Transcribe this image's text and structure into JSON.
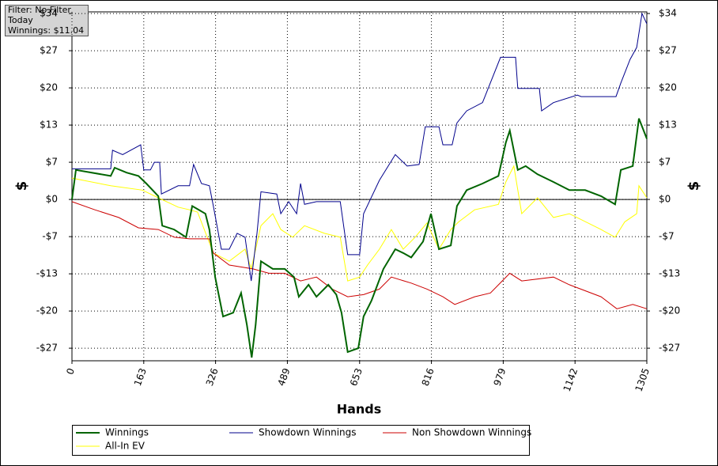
{
  "chart_data": {
    "type": "line",
    "annotations": [
      "Filter: No Filter",
      "Today",
      "Winnings: $11.04"
    ],
    "xlabel": "Hands",
    "ylabel": "$",
    "xlim": [
      0,
      1305
    ],
    "xticks": [
      0,
      163,
      326,
      489,
      653,
      816,
      979,
      1142,
      1305
    ],
    "ylim": [
      -29.5,
      34.3
    ],
    "yticks": [
      {
        "value": 34,
        "label": "$34"
      },
      {
        "value": 27.2,
        "label": "$27"
      },
      {
        "value": 20.4,
        "label": "$20"
      },
      {
        "value": 13.6,
        "label": "$13"
      },
      {
        "value": 6.8,
        "label": "$7"
      },
      {
        "value": 0,
        "label": "$0"
      },
      {
        "value": -6.8,
        "label": "-$7"
      },
      {
        "value": -13.6,
        "label": "-$13"
      },
      {
        "value": -20.4,
        "label": "-$20"
      },
      {
        "value": -27.2,
        "label": "-$27"
      }
    ],
    "grid": true,
    "series": [
      {
        "name": "Winnings",
        "color": "#006400",
        "x": [
          0,
          9,
          88,
          97,
          124,
          151,
          169,
          196,
          205,
          232,
          259,
          273,
          303,
          312,
          325,
          343,
          366,
          384,
          397,
          408,
          417,
          429,
          456,
          483,
          504,
          515,
          537,
          555,
          582,
          600,
          612,
          626,
          650,
          662,
          680,
          707,
          734,
          752,
          770,
          797,
          815,
          833,
          860,
          874,
          896,
          932,
          968,
          985,
          994,
          1012,
          1030,
          1057,
          1093,
          1129,
          1165,
          1201,
          1233,
          1246,
          1273,
          1287,
          1305
        ],
        "values": [
          0,
          5.4,
          4.3,
          5.8,
          4.9,
          4.3,
          2.9,
          0.6,
          -4.8,
          -5.5,
          -6.9,
          -1.2,
          -2.6,
          -5.5,
          -14.2,
          -21.4,
          -20.7,
          -17.1,
          -22.9,
          -28.9,
          -22.9,
          -11.3,
          -12.7,
          -12.7,
          -14.2,
          -17.8,
          -15.6,
          -17.8,
          -15.6,
          -17.4,
          -20.7,
          -27.9,
          -27.2,
          -21.4,
          -18.5,
          -12.7,
          -9.1,
          -9.8,
          -10.6,
          -7.7,
          -2.6,
          -9.1,
          -8.4,
          -1.2,
          1.7,
          2.9,
          4.3,
          10.4,
          12.6,
          5.4,
          6.1,
          4.6,
          3.2,
          1.7,
          1.7,
          0.6,
          -0.9,
          5.4,
          6.1,
          14.8,
          11.1
        ]
      },
      {
        "name": "Showdown Winnings",
        "color": "#00008b",
        "x": [
          0,
          88,
          92,
          115,
          156,
          163,
          178,
          187,
          199,
          203,
          241,
          267,
          276,
          294,
          312,
          321,
          339,
          357,
          375,
          393,
          407,
          420,
          429,
          465,
          474,
          492,
          510,
          519,
          528,
          555,
          609,
          626,
          653,
          662,
          698,
          734,
          761,
          788,
          802,
          833,
          842,
          863,
          874,
          896,
          932,
          973,
          1007,
          1012,
          1061,
          1066,
          1093,
          1147,
          1156,
          1235,
          1246,
          1267,
          1282,
          1294,
          1305
        ],
        "values": [
          5.6,
          5.6,
          9.0,
          8.2,
          10.0,
          5.4,
          5.4,
          6.8,
          6.8,
          1.0,
          2.5,
          2.5,
          6.4,
          2.9,
          2.5,
          -1.2,
          -9.1,
          -9.1,
          -6.2,
          -6.9,
          -14.9,
          -6.2,
          1.4,
          1.0,
          -2.6,
          -0.4,
          -2.6,
          2.9,
          -0.9,
          -0.4,
          -0.4,
          -10.1,
          -10.1,
          -2.6,
          3.5,
          8.2,
          6.1,
          6.4,
          13.3,
          13.3,
          10.0,
          10.0,
          14.0,
          16.2,
          17.7,
          26.0,
          26.0,
          20.3,
          20.3,
          16.2,
          17.7,
          19.1,
          18.8,
          18.8,
          21.3,
          25.6,
          27.8,
          34.0,
          32.1
        ]
      },
      {
        "name": "Non Showdown Winnings",
        "color": "#cc0000",
        "x": [
          0,
          52,
          106,
          151,
          196,
          232,
          267,
          312,
          321,
          357,
          411,
          447,
          483,
          519,
          555,
          591,
          626,
          662,
          698,
          725,
          770,
          806,
          842,
          869,
          914,
          950,
          994,
          1021,
          1093,
          1129,
          1201,
          1237,
          1273,
          1305
        ],
        "values": [
          -0.4,
          -1.9,
          -3.3,
          -5.2,
          -5.5,
          -6.9,
          -7.2,
          -7.2,
          -9.8,
          -12.0,
          -12.7,
          -13.5,
          -13.5,
          -14.9,
          -14.2,
          -16.4,
          -17.8,
          -17.4,
          -16.4,
          -14.2,
          -15.3,
          -16.4,
          -17.8,
          -19.2,
          -17.8,
          -17.1,
          -13.5,
          -14.9,
          -14.2,
          -15.6,
          -17.8,
          -20.0,
          -19.2,
          -20.0
        ]
      },
      {
        "name": "All-In EV",
        "color": "#ffff00",
        "x": [
          0,
          88,
          160,
          196,
          241,
          267,
          285,
          321,
          357,
          393,
          407,
          429,
          456,
          474,
          501,
          528,
          573,
          609,
          626,
          653,
          671,
          698,
          725,
          752,
          779,
          806,
          833,
          860,
          878,
          914,
          968,
          985,
          1003,
          1021,
          1057,
          1093,
          1129,
          1201,
          1233,
          1255,
          1282,
          1287,
          1305
        ],
        "values": [
          3.9,
          2.5,
          1.7,
          0.3,
          -1.4,
          -1.9,
          -2.3,
          -9.8,
          -11.3,
          -9.1,
          -12.7,
          -4.8,
          -2.6,
          -5.5,
          -6.9,
          -4.8,
          -6.2,
          -6.9,
          -14.9,
          -14.2,
          -12.0,
          -9.1,
          -5.5,
          -9.1,
          -6.9,
          -4.3,
          -9.1,
          -5.5,
          -4.1,
          -1.9,
          -0.9,
          3.2,
          6.1,
          -2.6,
          0.3,
          -3.3,
          -2.6,
          -5.5,
          -6.9,
          -4.1,
          -2.6,
          2.5,
          0.3
        ]
      }
    ]
  }
}
